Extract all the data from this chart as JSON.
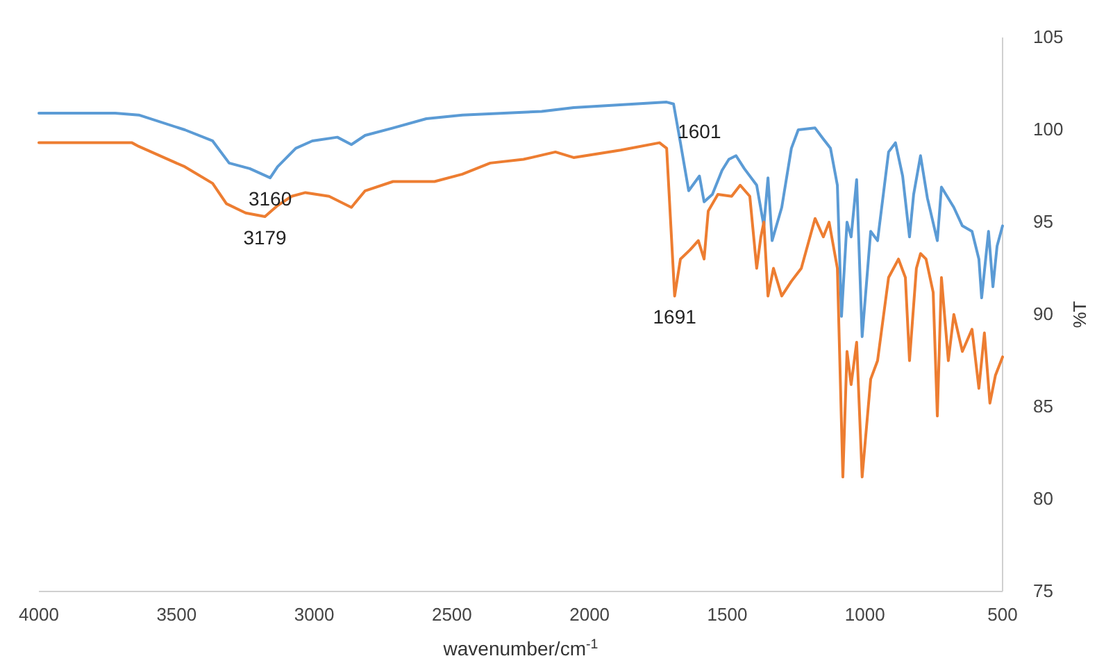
{
  "chart_data": {
    "type": "line",
    "xlabel": "wavenumber/cm$^{-1}$",
    "ylabel": "%T",
    "xlim": [
      4000,
      500
    ],
    "xticks": [
      4000,
      3500,
      3000,
      2500,
      2000,
      1500,
      1000,
      500
    ],
    "ylim": [
      75,
      105
    ],
    "yticks": [
      75,
      80,
      85,
      90,
      95,
      100,
      105
    ],
    "grid": false,
    "marker": "none",
    "line_style": "solid",
    "series": [
      {
        "color": "#5b9bd5",
        "x": [
          4000,
          3723,
          3637,
          3470,
          3369,
          3309,
          3234,
          3160,
          3133,
          3067,
          3007,
          2916,
          2865,
          2815,
          2714,
          2593,
          2462,
          2311,
          2174,
          2058,
          1720,
          1695,
          1670,
          1640,
          1601,
          1584,
          1554,
          1519,
          1494,
          1468,
          1438,
          1393,
          1367,
          1352,
          1337,
          1302,
          1267,
          1242,
          1181,
          1151,
          1125,
          1100,
          1085,
          1065,
          1050,
          1030,
          1010,
          979,
          954,
          914,
          889,
          863,
          838,
          823,
          798,
          773,
          737,
          722,
          677,
          646,
          611,
          586,
          576,
          551,
          535,
          520,
          500
        ],
        "values": [
          100.9,
          100.9,
          100.8,
          100.0,
          99.4,
          98.2,
          97.9,
          97.4,
          98.0,
          99.0,
          99.4,
          99.6,
          99.2,
          99.7,
          100.1,
          100.6,
          100.8,
          100.9,
          101.0,
          101.2,
          101.5,
          101.4,
          99.3,
          96.7,
          97.5,
          96.1,
          96.5,
          97.8,
          98.4,
          98.6,
          97.9,
          97.0,
          94.8,
          97.4,
          94.0,
          95.8,
          99.0,
          100.0,
          100.1,
          99.5,
          99.0,
          97.0,
          89.9,
          95.0,
          94.2,
          97.3,
          88.8,
          94.5,
          94.0,
          98.8,
          99.3,
          97.5,
          94.2,
          96.5,
          98.6,
          96.3,
          94.0,
          96.9,
          95.8,
          94.8,
          94.5,
          93.0,
          90.9,
          94.5,
          91.5,
          93.7,
          94.8
        ]
      },
      {
        "color": "#ed7d31",
        "x": [
          4000,
          3662,
          3637,
          3470,
          3369,
          3319,
          3249,
          3179,
          3133,
          3082,
          3032,
          2946,
          2865,
          2815,
          2714,
          2563,
          2462,
          2361,
          2240,
          2124,
          2058,
          1887,
          1746,
          1720,
          1691,
          1670,
          1635,
          1605,
          1584,
          1569,
          1534,
          1484,
          1453,
          1418,
          1393,
          1378,
          1367,
          1352,
          1332,
          1302,
          1267,
          1231,
          1181,
          1151,
          1130,
          1100,
          1080,
          1065,
          1050,
          1030,
          1010,
          979,
          954,
          914,
          878,
          853,
          838,
          813,
          798,
          778,
          752,
          737,
          722,
          697,
          677,
          646,
          611,
          586,
          566,
          546,
          526,
          500
        ],
        "values": [
          99.3,
          99.3,
          99.1,
          98.0,
          97.1,
          96.0,
          95.5,
          95.3,
          95.9,
          96.4,
          96.6,
          96.4,
          95.8,
          96.7,
          97.2,
          97.2,
          97.6,
          98.2,
          98.4,
          98.8,
          98.5,
          98.9,
          99.3,
          99.0,
          91.0,
          93.0,
          93.5,
          94.0,
          93.0,
          95.6,
          96.5,
          96.4,
          97.0,
          96.4,
          92.5,
          94.2,
          95.0,
          91.0,
          92.5,
          91.0,
          91.8,
          92.5,
          95.2,
          94.2,
          95.0,
          92.5,
          81.2,
          88.0,
          86.2,
          88.5,
          81.2,
          86.5,
          87.5,
          92.0,
          93.0,
          92.0,
          87.5,
          92.5,
          93.3,
          93.0,
          91.2,
          84.5,
          92.0,
          87.5,
          90.0,
          88.0,
          89.2,
          86.0,
          89.0,
          85.2,
          86.7,
          87.7
        ]
      }
    ],
    "annotations": [
      {
        "text": "3160",
        "x": 3160,
        "y": 97.4
      },
      {
        "text": "3179",
        "x": 3179,
        "y": 95.3
      },
      {
        "text": "1601",
        "x": 1601,
        "y": 97.5
      },
      {
        "text": "1691",
        "x": 1691,
        "y": 91.0
      }
    ]
  }
}
